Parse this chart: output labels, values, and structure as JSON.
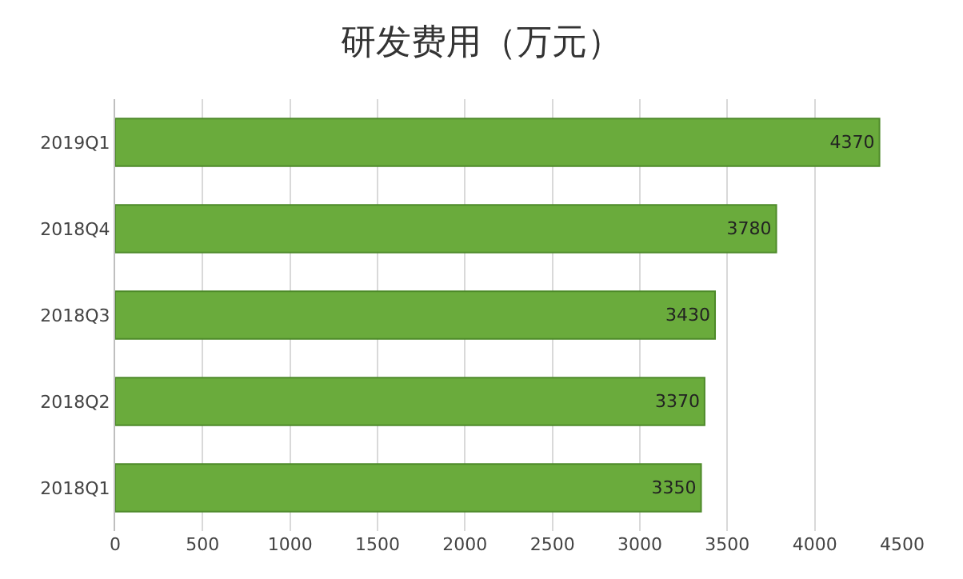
{
  "chart_data": {
    "type": "bar",
    "orientation": "horizontal",
    "title": "研发费用（万元）",
    "categories": [
      "2019Q1",
      "2018Q4",
      "2018Q3",
      "2018Q2",
      "2018Q1"
    ],
    "values": [
      4370,
      3780,
      3430,
      3370,
      3350
    ],
    "color": "#6aab3c",
    "xlim": [
      0,
      4500
    ],
    "xticks": [
      0,
      500,
      1000,
      1500,
      2000,
      2500,
      3000,
      3500,
      4000,
      4500
    ],
    "grid": "x",
    "data_labels": true
  }
}
